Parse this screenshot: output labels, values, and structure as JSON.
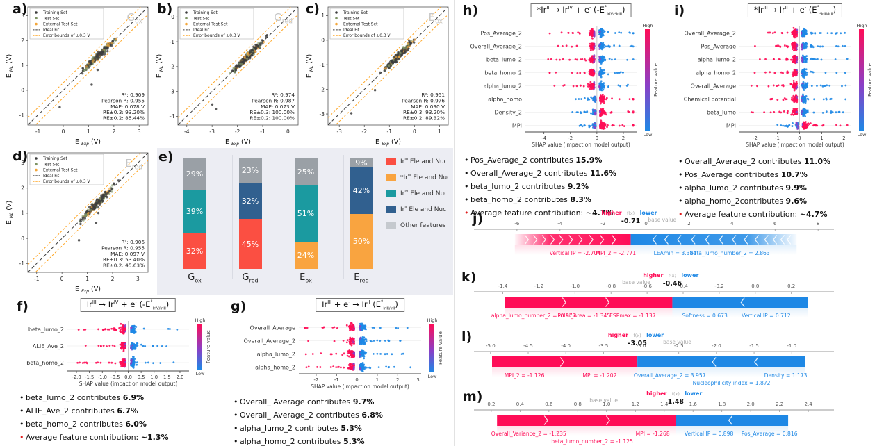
{
  "colors": {
    "train": "#3d3d3d",
    "test": "#7e9464",
    "external": "#f2a63b",
    "ideal": "#3a3a3a",
    "bound": "#ffa726",
    "shap_red": "#ff0d57",
    "shap_blue": "#1e88e5",
    "shap_purple": "#8b3fc6",
    "bar_red": "#fb4f42",
    "bar_orange": "#f9a440",
    "bar_teal": "#1b9aa0",
    "bar_navy": "#31608f",
    "bar_gray": "#9aa0a6",
    "legend_gray": "#c5c9ce",
    "title_gray": "#c6c6c6"
  },
  "shared": {
    "scatter_legend": [
      "Training Set",
      "Test Set",
      "External Test Set",
      "Ideal Fit",
      "Error bounds of ±0.3 V"
    ],
    "shap_xlabel": "SHAP value (impact on model output)",
    "colorbar": {
      "high": "High",
      "low": "Low",
      "label": "Feature value"
    },
    "force_labels": {
      "higher": "higher",
      "fx": "f(x)",
      "lower": "lower",
      "base": "base value"
    }
  },
  "chart_data": [
    {
      "id": "a",
      "label": "a)",
      "type": "scatter",
      "title": "G_{ox}",
      "xlabel": "E _{Exp} (V)",
      "ylabel": "E _{ML} (V)",
      "lim": [
        -1.4,
        3.35
      ],
      "ticks": [
        -1,
        0,
        1,
        2,
        3
      ],
      "stats": [
        "R²: 0.909",
        "Pearson R: 0.955",
        "MAE: 0.078 V",
        "RE±0.3: 93.20%",
        "RE±0.2: 85.44%"
      ]
    },
    {
      "id": "b",
      "label": "b)",
      "type": "scatter",
      "title": "G_{red}",
      "xlabel": "E _{Exp} (V)",
      "ylabel": "E _{ML} (V)",
      "lim": [
        -4.35,
        0.4
      ],
      "ticks": [
        -4,
        -3,
        -2,
        -1,
        0
      ],
      "stats": [
        "R²: 0.974",
        "Pearson R: 0.987",
        "MAE: 0.073 V",
        "RE±0.3: 100.00%",
        "RE±0.2: 100.00%"
      ]
    },
    {
      "id": "c",
      "label": "c)",
      "type": "scatter",
      "title": "E_{ox}",
      "xlabel": "E _{Exp} (V)",
      "ylabel": "E _{ML} (V)",
      "lim": [
        -3.45,
        1.35
      ],
      "ticks": [
        -3,
        -2,
        -1,
        0,
        1
      ],
      "stats": [
        "R²: 0.951",
        "Pearson R: 0.976",
        "MAE: 0.090 V",
        "RE±0.3: 93.20%",
        "RE±0.2: 89.32%"
      ]
    },
    {
      "id": "d",
      "label": "d)",
      "type": "scatter",
      "title": "E_{red}",
      "xlabel": "E _{Exp} (V)",
      "ylabel": "E _{ML} (V)",
      "lim": [
        -1.35,
        3.4
      ],
      "ticks": [
        -1,
        0,
        1,
        2,
        3
      ],
      "stats": [
        "R²: 0.906",
        "Pearson R: 0.955",
        "MAE: 0.097 V",
        "RE±0.3: 53.40%",
        "RE±0.2: 45.63%"
      ]
    },
    {
      "id": "e",
      "label": "e)",
      "type": "bar",
      "categories": [
        "G_{ox}",
        "G_{red}",
        "E_{ox}",
        "E_{red}"
      ],
      "series_legend": [
        {
          "label": "Ir^{III} Ele and Nuc",
          "color": "bar_red"
        },
        {
          "label": "*Ir^{III} Ele and Nuc",
          "color": "bar_orange"
        },
        {
          "label": "Ir^{IV} Ele and Nuc",
          "color": "bar_teal"
        },
        {
          "label": "Ir^{II} Ele and Nuc",
          "color": "bar_navy"
        },
        {
          "label": "Other features",
          "color": "legend_gray"
        }
      ],
      "bars": [
        {
          "segments": [
            [
              "bar_red",
              32
            ],
            [
              "bar_teal",
              39
            ],
            [
              "bar_gray",
              29
            ]
          ]
        },
        {
          "segments": [
            [
              "bar_red",
              45
            ],
            [
              "bar_navy",
              32
            ],
            [
              "bar_gray",
              23
            ]
          ]
        },
        {
          "segments": [
            [
              "bar_orange",
              24
            ],
            [
              "bar_teal",
              51
            ],
            [
              "bar_gray",
              25
            ]
          ]
        },
        {
          "segments": [
            [
              "bar_orange",
              50
            ],
            [
              "bar_navy",
              42
            ],
            [
              "bar_gray",
              9
            ]
          ]
        }
      ]
    },
    {
      "id": "f",
      "label": "f)",
      "type": "beeswarm",
      "title": "Ir^{III} → Ir^{IV} + e^{-} (-E^{°}_{IrIV/IrIII})",
      "features": [
        "beta_lumo_2",
        "ALIE_Ave_2",
        "beta_homo_2"
      ],
      "flip": [
        0,
        0,
        0
      ],
      "ticks": [
        "-2.0",
        "-1.5",
        "-1.0",
        "-0.5",
        "0.0",
        "0.5",
        "1.0",
        "1.5",
        "2.0"
      ],
      "range": [
        -2.35,
        2.35
      ]
    },
    {
      "id": "g",
      "label": "g)",
      "type": "beeswarm",
      "title": "Ir^{III} + e^{-} → Ir^{II} (E^{°}_{IrIII/IrII})",
      "features": [
        "Overall_Average",
        "Overall_Average_2",
        "alpha_lumo_2",
        "alpha_homo_2"
      ],
      "flip": [
        0,
        0,
        0,
        0
      ],
      "ticks": [
        "-2",
        "-1",
        "0",
        "1",
        "2",
        "3"
      ],
      "range": [
        -2.85,
        3.15
      ]
    },
    {
      "id": "h",
      "label": "h)",
      "type": "beeswarm",
      "title": "*Ir^{III} → Ir^{IV} + e^{-} (-E^{°}_{IrIV/*IrIII})",
      "features": [
        "Pos_Average_2",
        "Overall_Average_2",
        "beta_lumo_2",
        "beta_homo_2",
        "alpha_lumo_2",
        "alpha_homo",
        "Density_2",
        "MPI"
      ],
      "flip": [
        0,
        0,
        0,
        0,
        0,
        1,
        1,
        1
      ],
      "ticks": [
        "-4",
        "-2",
        "0",
        "2"
      ],
      "range": [
        -5.4,
        3.0
      ]
    },
    {
      "id": "i",
      "label": "i)",
      "type": "beeswarm",
      "title": "*Ir^{III} → Ir^{II} + e^{-} (E^{°}_{*IrIII/IrII})",
      "features": [
        "Overall_Average_2",
        "Pos_Average",
        "alpha_lumo_2",
        "alpha_homo_2",
        "Overall_Average",
        "Chemical potential",
        "beta_lumo",
        "MPI"
      ],
      "flip": [
        0,
        0,
        0,
        0,
        0,
        0,
        0,
        1
      ],
      "ticks": [
        "-2",
        "-1",
        "0",
        "1",
        "2"
      ],
      "range": [
        -2.7,
        2.3
      ]
    },
    {
      "id": "j",
      "label": "j)",
      "type": "force",
      "fx": "-0.71",
      "fxv": -0.71,
      "base": 0.75,
      "ticks": [
        "-6",
        "-4",
        "-2",
        "0",
        "2",
        "4",
        "6",
        "8"
      ],
      "range": [
        -8.0,
        8.35
      ],
      "bar": [
        -6.1,
        7.0
      ],
      "fade": 1,
      "red_chevrons": [
        -5.55,
        -5.15,
        -4.75,
        -4.35,
        -3.95,
        -3.5,
        -3.05,
        -2.55,
        -2.05,
        -1.5
      ],
      "blue_chevrons": [
        0.4,
        0.95,
        1.55,
        2.2,
        2.85,
        3.5,
        4.1,
        4.65,
        5.15,
        5.6,
        6.0,
        6.35,
        6.65
      ],
      "red_labels": [
        [
          "Vertical IP = -2.704",
          -3.3,
          1
        ],
        [
          "MPI_2 = -2.771",
          -1.4,
          1
        ]
      ],
      "blue_labels": [
        [
          "LEAmin = 3.384",
          1.35,
          1
        ],
        [
          "beta_lumo_number_2 = 2.863",
          3.9,
          1
        ]
      ]
    },
    {
      "id": "k",
      "label": "k)",
      "type": "force",
      "fx": "-0.46",
      "fxv": -0.46,
      "base": -0.66,
      "ticks": [
        "-1.4",
        "-1.2",
        "-1.0",
        "-0.8",
        "-0.6",
        "-0.4",
        "-0.2",
        "0.0",
        "0.2"
      ],
      "range": [
        -1.56,
        0.39
      ],
      "bar": [
        -1.39,
        0.29
      ],
      "red_chevrons": [
        -1.06,
        -0.82
      ],
      "blue_chevrons": [
        -0.07
      ],
      "red_labels": [
        [
          "alpha_lumo_number_2 = -0.873",
          -1.23,
          1
        ],
        [
          "Polar_Area = -1.345",
          -0.95,
          1
        ],
        [
          "ESPmax = -1.137",
          -0.68,
          1
        ]
      ],
      "blue_labels": [
        [
          "Softness = 0.673",
          -0.28,
          1
        ],
        [
          "Vertical IP = 0.712",
          0.06,
          1
        ]
      ]
    },
    {
      "id": "l",
      "label": "l)",
      "type": "force",
      "fx": "-3.05",
      "fxv": -3.05,
      "base": -2.52,
      "ticks": [
        "-5.0",
        "-4.5",
        "-4.0",
        "-3.5",
        "-3.0",
        "-2.5",
        "-2.0",
        "-1.5",
        "-1.0"
      ],
      "range": [
        -5.22,
        -0.55
      ],
      "bar": [
        -4.98,
        -0.82
      ],
      "red_chevrons": [
        -4.05
      ],
      "blue_chevrons": [
        -2.03,
        -1.47
      ],
      "red_labels": [
        [
          "MPI_2 = -1.126",
          -4.55,
          1
        ],
        [
          "MPI = -1.202",
          -3.55,
          1
        ]
      ],
      "blue_labels": [
        [
          "Overall_Average_2 = 3.957",
          -2.62,
          1
        ],
        [
          "Nucleophilicity index = 1.872",
          -1.8,
          2
        ],
        [
          "Density = 1.173",
          -1.08,
          1
        ]
      ]
    },
    {
      "id": "m",
      "label": "m)",
      "type": "force",
      "fx": "1.48",
      "fxv": 1.48,
      "base": 0.98,
      "ticks": [
        "0.2",
        "0.4",
        "0.6",
        "0.8",
        "1.0",
        "1.2",
        "1.4",
        "1.6",
        "1.8",
        "2.0",
        "2.2",
        "2.4"
      ],
      "range": [
        0.08,
        2.52
      ],
      "bar": [
        0.24,
        2.26
      ],
      "red_chevrons": [
        0.58,
        1.01
      ],
      "blue_chevrons": [
        1.86
      ],
      "red_labels": [
        [
          "Overall_Variance_2 = -1.235",
          0.46,
          1
        ],
        [
          "beta_lumo_number_2 = -1.125",
          0.9,
          2
        ],
        [
          "MPI = -1.268",
          1.32,
          1
        ]
      ],
      "blue_labels": [
        [
          "Vertical IP = 0.898",
          1.71,
          1
        ],
        [
          "Pos_Average = 0.816",
          2.13,
          1
        ]
      ]
    }
  ],
  "bullets": {
    "f": [
      {
        "pre": "beta_lumo_2 contributes ",
        "val": "6.9%"
      },
      {
        "pre": "ALIE_Ave_2 contributes ",
        "val": "6.7%"
      },
      {
        "pre": "beta_homo_2 contributes ",
        "val": "6.0%"
      },
      {
        "pre": "Average feature contribution: ",
        "val": "~1.3%",
        "red": true
      }
    ],
    "g": [
      {
        "pre": "Overall_ Average contributes ",
        "val": "9.7%"
      },
      {
        "pre": "Overall_ Average_2 contributes ",
        "val": "6.8%"
      },
      {
        "pre": "alpha_lumo_2 contributes ",
        "val": "5.3%"
      },
      {
        "pre": "alpha_homo_2 contributes ",
        "val": "5.3%"
      },
      {
        "pre": "Average feature contribution: ",
        "val": "~1.5%",
        "red": true
      }
    ],
    "h": [
      {
        "pre": "Pos_Average_2 contributes ",
        "val": "15.9%"
      },
      {
        "pre": "Overall_Average_2 contributes ",
        "val": "11.6%"
      },
      {
        "pre": "beta_lumo_2 contributes ",
        "val": "9.2%"
      },
      {
        "pre": "beta_homo_2 contributes ",
        "val": "8.3%"
      },
      {
        "pre": "Average feature contribution: ",
        "val": "~4.7%",
        "red": true
      }
    ],
    "i": [
      {
        "pre": "Overall_Average_2  contributes ",
        "val": "11.0%"
      },
      {
        "pre": "Pos_Average contributes ",
        "val": "10.7%"
      },
      {
        "pre": "alpha_lumo_2 contributes ",
        "val": "9.9%"
      },
      {
        "pre": "alpha_homo_2contributes ",
        "val": "9.6%"
      },
      {
        "pre": "Average feature contribution: ",
        "val": "~4.7%",
        "red": true
      }
    ]
  }
}
